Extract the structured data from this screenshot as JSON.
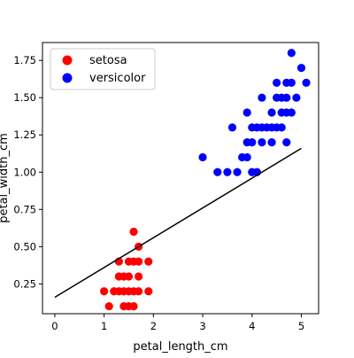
{
  "chart_data": {
    "type": "scatter",
    "title": "",
    "xlabel": "petal_length_cm",
    "ylabel": "petal_width_cm",
    "xlim": [
      -0.25,
      5.35
    ],
    "ylim": [
      0.05,
      1.87
    ],
    "x_ticks": [
      0,
      1,
      2,
      3,
      4,
      5
    ],
    "y_ticks": [
      0.25,
      0.5,
      0.75,
      1.0,
      1.25,
      1.5,
      1.75
    ],
    "grid": false,
    "legend_position": "top-left",
    "series": [
      {
        "name": "setosa",
        "color": "#ff0000",
        "points": [
          [
            1.0,
            0.2
          ],
          [
            1.1,
            0.1
          ],
          [
            1.2,
            0.2
          ],
          [
            1.3,
            0.2
          ],
          [
            1.3,
            0.3
          ],
          [
            1.3,
            0.4
          ],
          [
            1.4,
            0.2
          ],
          [
            1.4,
            0.3
          ],
          [
            1.4,
            0.1
          ],
          [
            1.5,
            0.2
          ],
          [
            1.5,
            0.1
          ],
          [
            1.5,
            0.3
          ],
          [
            1.5,
            0.4
          ],
          [
            1.6,
            0.2
          ],
          [
            1.6,
            0.4
          ],
          [
            1.6,
            0.6
          ],
          [
            1.6,
            0.1
          ],
          [
            1.7,
            0.2
          ],
          [
            1.7,
            0.3
          ],
          [
            1.7,
            0.4
          ],
          [
            1.7,
            0.5
          ],
          [
            1.9,
            0.2
          ],
          [
            1.9,
            0.4
          ]
        ]
      },
      {
        "name": "versicolor",
        "color": "#0000ff",
        "points": [
          [
            3.0,
            1.1
          ],
          [
            3.3,
            1.0
          ],
          [
            3.5,
            1.0
          ],
          [
            3.6,
            1.3
          ],
          [
            3.7,
            1.0
          ],
          [
            3.8,
            1.1
          ],
          [
            3.9,
            1.1
          ],
          [
            3.9,
            1.2
          ],
          [
            3.9,
            1.4
          ],
          [
            4.0,
            1.0
          ],
          [
            4.0,
            1.2
          ],
          [
            4.0,
            1.3
          ],
          [
            4.1,
            1.0
          ],
          [
            4.1,
            1.3
          ],
          [
            4.2,
            1.2
          ],
          [
            4.2,
            1.3
          ],
          [
            4.2,
            1.5
          ],
          [
            4.3,
            1.3
          ],
          [
            4.4,
            1.2
          ],
          [
            4.4,
            1.3
          ],
          [
            4.4,
            1.4
          ],
          [
            4.5,
            1.3
          ],
          [
            4.5,
            1.5
          ],
          [
            4.6,
            1.3
          ],
          [
            4.6,
            1.4
          ],
          [
            4.6,
            1.5
          ],
          [
            4.7,
            1.2
          ],
          [
            4.7,
            1.4
          ],
          [
            4.7,
            1.5
          ],
          [
            4.7,
            1.6
          ],
          [
            4.8,
            1.4
          ],
          [
            4.8,
            1.8
          ],
          [
            4.9,
            1.5
          ],
          [
            5.0,
            1.7
          ],
          [
            5.1,
            1.6
          ],
          [
            4.5,
            1.6
          ],
          [
            4.8,
            1.6
          ]
        ]
      }
    ],
    "regression_line": {
      "color": "#000000",
      "points": [
        [
          0.0,
          0.16
        ],
        [
          5.0,
          1.16
        ]
      ]
    }
  }
}
